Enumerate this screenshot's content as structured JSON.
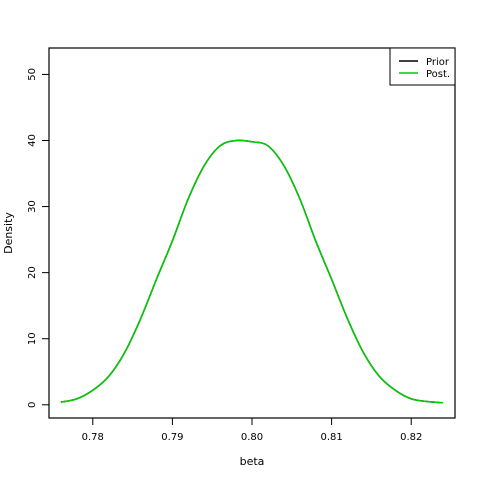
{
  "chart_data": {
    "type": "line",
    "title": "",
    "xlabel": "beta",
    "ylabel": "Density",
    "xlim": [
      0.7745,
      0.8255
    ],
    "ylim": [
      -2,
      54
    ],
    "x_ticks": [
      0.78,
      0.79,
      0.8,
      0.81,
      0.82
    ],
    "x_tick_labels": [
      "0.78",
      "0.79",
      "0.80",
      "0.81",
      "0.82"
    ],
    "y_ticks": [
      0,
      10,
      20,
      30,
      40,
      50
    ],
    "y_tick_labels": [
      "0",
      "10",
      "20",
      "30",
      "40",
      "50"
    ],
    "grid": false,
    "legend_position": "top-right",
    "series": [
      {
        "name": "Prior",
        "color": "#000000",
        "x": [
          0.776,
          0.778,
          0.78,
          0.782,
          0.784,
          0.786,
          0.788,
          0.79,
          0.792,
          0.794,
          0.796,
          0.798,
          0.8,
          0.802,
          0.804,
          0.806,
          0.808,
          0.81,
          0.812,
          0.814,
          0.816,
          0.818,
          0.82,
          0.822,
          0.824
        ],
        "values": [
          0.4,
          0.9,
          2.2,
          4.3,
          7.9,
          13.0,
          19.0,
          24.8,
          31.2,
          36.2,
          39.2,
          40.0,
          39.8,
          39.2,
          36.2,
          31.2,
          24.8,
          19.0,
          13.0,
          7.9,
          4.3,
          2.2,
          0.9,
          0.5,
          0.3
        ]
      },
      {
        "name": "Post.",
        "color": "#00cc00",
        "x": [
          0.776,
          0.778,
          0.78,
          0.782,
          0.784,
          0.786,
          0.788,
          0.79,
          0.792,
          0.794,
          0.796,
          0.798,
          0.8,
          0.802,
          0.804,
          0.806,
          0.808,
          0.81,
          0.812,
          0.814,
          0.816,
          0.818,
          0.82,
          0.822,
          0.824
        ],
        "values": [
          0.4,
          0.9,
          2.2,
          4.3,
          7.9,
          13.0,
          19.0,
          24.8,
          31.2,
          36.2,
          39.2,
          40.0,
          39.8,
          39.2,
          36.2,
          31.2,
          24.8,
          19.0,
          13.0,
          7.9,
          4.3,
          2.2,
          0.9,
          0.5,
          0.3
        ]
      }
    ]
  }
}
